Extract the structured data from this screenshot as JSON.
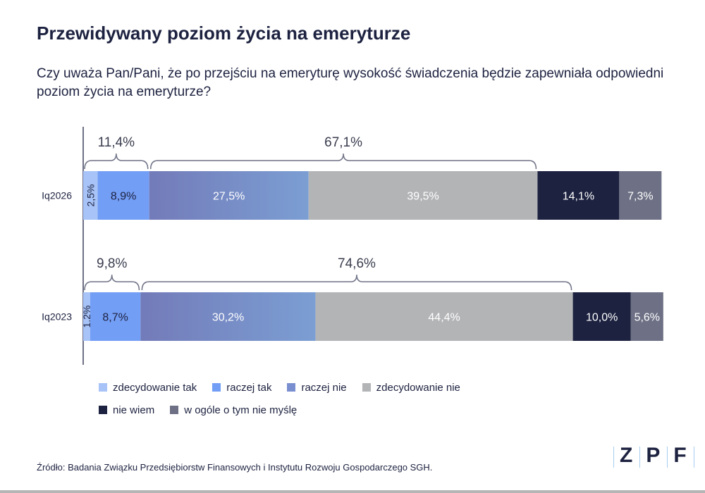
{
  "chart_data": {
    "type": "bar",
    "orientation": "horizontal",
    "stacked": true,
    "title": "Przewidywany poziom życia na emeryturze",
    "subtitle": "Czy uważa Pan/Pani, że po przejściu na emeryturę wysokość świadczenia będzie zapewniała odpowiedni poziom życia na emeryturze?",
    "categories": [
      "Iq2026",
      "Iq2023"
    ],
    "series": [
      {
        "name": "zdecydowanie tak",
        "color": "#a7c3f7",
        "values": [
          2.5,
          1.2
        ],
        "labels": [
          "2,5%",
          "1,2%"
        ]
      },
      {
        "name": "raczej tak",
        "color": "#739ef5",
        "values": [
          8.9,
          8.7
        ],
        "labels": [
          "8,9%",
          "8,7%"
        ]
      },
      {
        "name": "raczej nie",
        "color": "#7a8fd0",
        "values": [
          27.5,
          30.2
        ],
        "labels": [
          "27,5%",
          "30,2%"
        ]
      },
      {
        "name": "zdecydowanie nie",
        "color": "#b3b4b6",
        "values": [
          39.5,
          44.4
        ],
        "labels": [
          "39,5%",
          "44,4%"
        ]
      },
      {
        "name": "nie wiem",
        "color": "#1d2240",
        "values": [
          14.1,
          10.0
        ],
        "labels": [
          "14,1%",
          "10,0%"
        ]
      },
      {
        "name": "w ogóle o tym nie myślę",
        "color": "#6e7185",
        "values": [
          7.3,
          5.6
        ],
        "labels": [
          "7,3%",
          "5,6%"
        ]
      }
    ],
    "brackets": [
      {
        "row": 0,
        "from": 0,
        "to": 2,
        "label": "11,4%"
      },
      {
        "row": 0,
        "from": 2,
        "to": 4,
        "label": "67,1%"
      },
      {
        "row": 1,
        "from": 0,
        "to": 2,
        "label": "9,8%"
      },
      {
        "row": 1,
        "from": 2,
        "to": 4,
        "label": "74,6%"
      }
    ],
    "xlim": [
      0,
      100
    ],
    "legend": "bottom"
  },
  "source": "Źródło: Badania Związku Przedsiębiorstw Finansowych i Instytutu Rozwoju Gospodarczego SGH.",
  "logo": [
    "Z",
    "P",
    "F"
  ]
}
